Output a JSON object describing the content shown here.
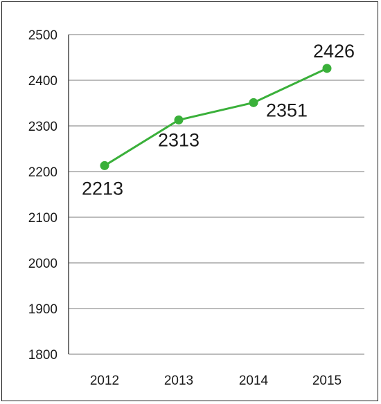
{
  "chart_data": {
    "type": "line",
    "categories": [
      "2012",
      "2013",
      "2014",
      "2015"
    ],
    "series": [
      {
        "values": [
          2213,
          2313,
          2351,
          2426
        ],
        "color": "#3ab03a"
      }
    ],
    "data_labels": [
      "2213",
      "2313",
      "2351",
      "2426"
    ],
    "y_ticks": [
      "1800",
      "1900",
      "2000",
      "2100",
      "2200",
      "2300",
      "2400",
      "2500"
    ],
    "ylim": [
      1800,
      2500
    ],
    "grid": true,
    "title": "",
    "xlabel": "",
    "ylabel": ""
  }
}
